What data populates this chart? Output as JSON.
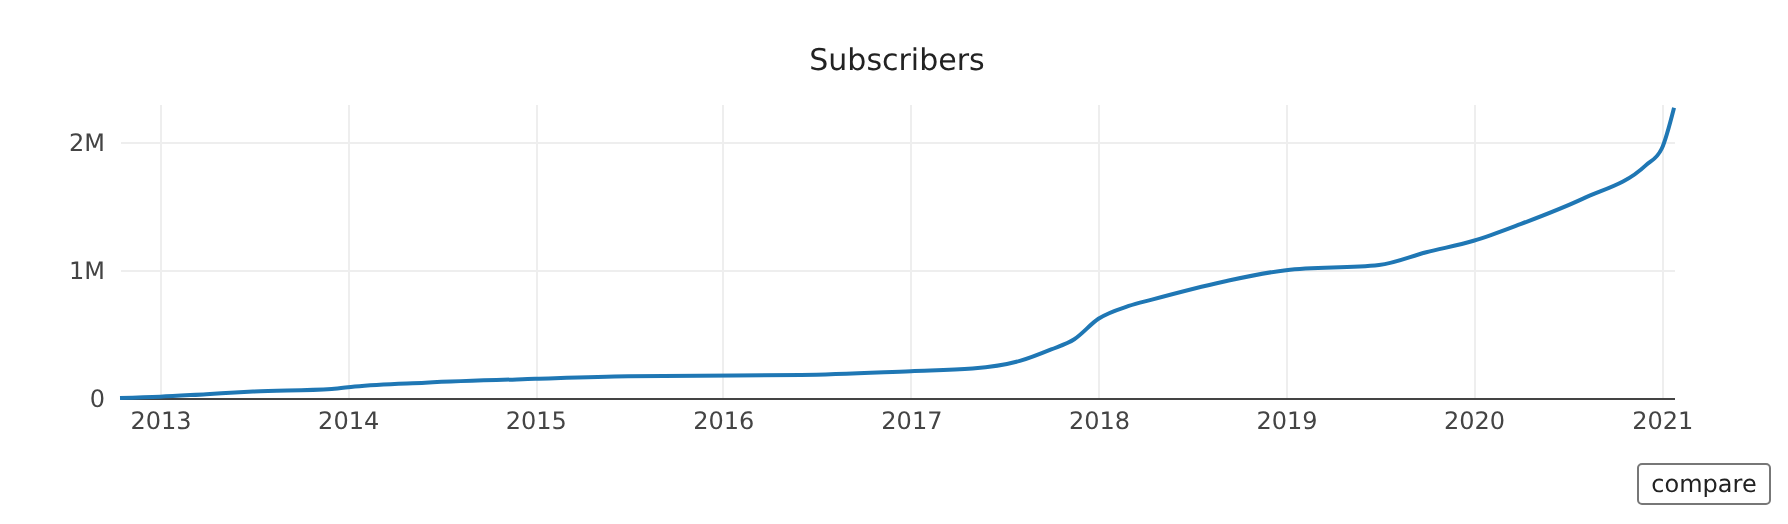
{
  "chart_data": {
    "type": "line",
    "title": "Subscribers",
    "x": [
      "2012-10-15",
      "2013-01-01",
      "2013-04-01",
      "2013-07-01",
      "2013-12-01",
      "2014-01-15",
      "2014-06-01",
      "2015-01-01",
      "2015-07-01",
      "2016-06-01",
      "2017-01-01",
      "2017-05-01",
      "2017-08-01",
      "2017-10-01",
      "2017-11-15",
      "2018-01-01",
      "2018-03-01",
      "2018-04-15",
      "2018-09-01",
      "2019-01-01",
      "2019-07-01",
      "2019-10-01",
      "2020-01-01",
      "2020-04-01",
      "2020-08-01",
      "2020-12-01",
      "2021-01-01",
      "2021-01-25"
    ],
    "series": [
      {
        "color": "#1f77b4",
        "values": [
          0,
          10000,
          30000,
          50000,
          70000,
          90000,
          120000,
          150000,
          170000,
          180000,
          210000,
          230000,
          290000,
          380000,
          460000,
          620000,
          720000,
          770000,
          910000,
          1000000,
          1040000,
          1140000,
          1230000,
          1360000,
          1560000,
          1820000,
          1950000,
          2270000
        ]
      }
    ],
    "xlim": [
      "2012-10-15",
      "2021-01-25"
    ],
    "xticks": [
      "2013",
      "2014",
      "2015",
      "2016",
      "2017",
      "2018",
      "2019",
      "2020",
      "2021"
    ],
    "ylim": [
      0,
      2300000
    ],
    "yticks": [
      0,
      {
        "value": 1000000,
        "label": "1M"
      },
      {
        "value": 2000000,
        "label": "2M"
      }
    ],
    "grid": true,
    "marker": "none",
    "line_style": "solid",
    "annotations": [
      "compare"
    ]
  }
}
